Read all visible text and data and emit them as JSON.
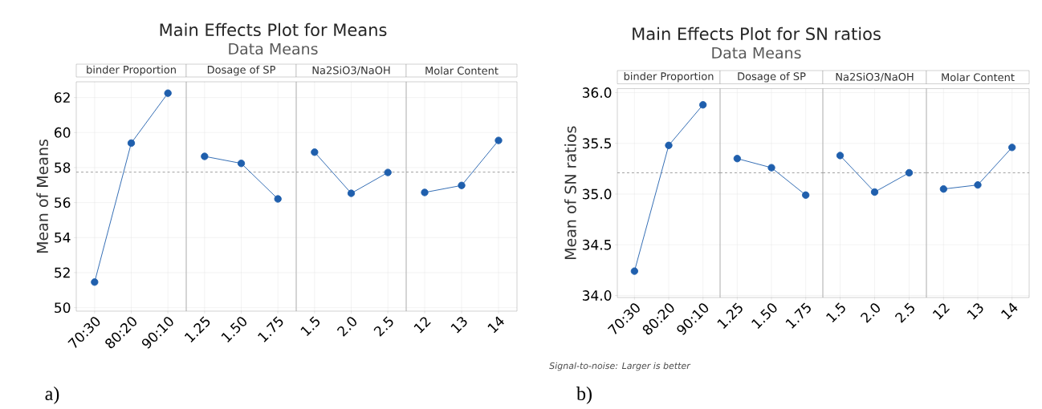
{
  "chart_data": [
    {
      "type": "line",
      "title": "binder Proportion",
      "ylabel": "Mean of Means",
      "annotations": [
        "Main Effects Plot for Means",
        "Data Means",
        "a)"
      ],
      "categories": [
        "70:30",
        "80:20",
        "90:10"
      ],
      "values": [
        51.46,
        59.4,
        62.25
      ],
      "color": "#1f5fad",
      "marker": "circle",
      "grid": true,
      "ylim": [
        49.8,
        62.9
      ],
      "yticks": [
        50,
        52,
        54,
        56,
        58,
        60,
        62
      ],
      "ref_lines": [
        {
          "axis": "y",
          "value": 57.74,
          "color": "#a0a0a0",
          "line_style": "dashed"
        }
      ]
    },
    {
      "type": "line",
      "title": "Dosage of SP",
      "categories": [
        "1.25",
        "1.50",
        "1.75"
      ],
      "values": [
        58.64,
        58.24,
        56.21
      ],
      "color": "#1f5fad",
      "marker": "circle",
      "grid": true,
      "ylim": [
        49.8,
        62.9
      ],
      "yticks": [
        50,
        52,
        54,
        56,
        58,
        60,
        62
      ],
      "tick_labels": "x",
      "ref_lines": [
        {
          "axis": "y",
          "value": 57.74,
          "color": "#a0a0a0",
          "line_style": "dashed"
        }
      ]
    },
    {
      "type": "line",
      "title": "Na2SiO3/NaOH",
      "categories": [
        "1.5",
        "2.0",
        "2.5"
      ],
      "values": [
        58.88,
        56.53,
        57.72
      ],
      "color": "#1f5fad",
      "marker": "circle",
      "grid": true,
      "ylim": [
        49.8,
        62.9
      ],
      "yticks": [
        50,
        52,
        54,
        56,
        58,
        60,
        62
      ],
      "tick_labels": "x",
      "ref_lines": [
        {
          "axis": "y",
          "value": 57.74,
          "color": "#a0a0a0",
          "line_style": "dashed"
        }
      ]
    },
    {
      "type": "line",
      "title": "Molar Content",
      "categories": [
        "12",
        "13",
        "14"
      ],
      "values": [
        56.58,
        56.98,
        59.55
      ],
      "color": "#1f5fad",
      "marker": "circle",
      "grid": true,
      "ylim": [
        49.8,
        62.9
      ],
      "yticks": [
        50,
        52,
        54,
        56,
        58,
        60,
        62
      ],
      "tick_labels": "x",
      "ref_lines": [
        {
          "axis": "y",
          "value": 57.74,
          "color": "#a0a0a0",
          "line_style": "dashed"
        }
      ]
    },
    {
      "type": "line",
      "title": "binder Proportion",
      "ylabel": "Mean of SN ratios",
      "annotations": [
        "Main Effects Plot for SN ratios",
        "Data Means",
        "Signal-to-noise: Larger is better",
        "b)"
      ],
      "categories": [
        "70:30",
        "80:20",
        "90:10"
      ],
      "values": [
        34.24,
        35.48,
        35.88
      ],
      "color": "#1f5fad",
      "marker": "circle",
      "grid": true,
      "ylim": [
        33.98,
        36.04
      ],
      "yticks": [
        {
          "value": 34,
          "label": "34.0"
        },
        {
          "value": 34.5,
          "label": "34.5"
        },
        {
          "value": 35,
          "label": "35.0"
        },
        {
          "value": 35.5,
          "label": "35.5"
        },
        {
          "value": 36,
          "label": "36.0"
        }
      ],
      "ref_lines": [
        {
          "axis": "y",
          "value": 35.21,
          "color": "#a0a0a0",
          "line_style": "dashed"
        }
      ]
    },
    {
      "type": "line",
      "title": "Dosage of SP",
      "categories": [
        "1.25",
        "1.50",
        "1.75"
      ],
      "values": [
        35.35,
        35.26,
        34.99
      ],
      "color": "#1f5fad",
      "marker": "circle",
      "grid": true,
      "ylim": [
        33.98,
        36.04
      ],
      "yticks": [
        34,
        34.5,
        35,
        35.5,
        36
      ],
      "tick_labels": "x",
      "ref_lines": [
        {
          "axis": "y",
          "value": 35.21,
          "color": "#a0a0a0",
          "line_style": "dashed"
        }
      ]
    },
    {
      "type": "line",
      "title": "Na2SiO3/NaOH",
      "categories": [
        "1.5",
        "2.0",
        "2.5"
      ],
      "values": [
        35.38,
        35.02,
        35.21
      ],
      "color": "#1f5fad",
      "marker": "circle",
      "grid": true,
      "ylim": [
        33.98,
        36.04
      ],
      "yticks": [
        34,
        34.5,
        35,
        35.5,
        36
      ],
      "tick_labels": "x",
      "ref_lines": [
        {
          "axis": "y",
          "value": 35.21,
          "color": "#a0a0a0",
          "line_style": "dashed"
        }
      ]
    },
    {
      "type": "line",
      "title": "Molar Content",
      "categories": [
        "12",
        "13",
        "14"
      ],
      "values": [
        35.05,
        35.09,
        35.46
      ],
      "color": "#1f5fad",
      "marker": "circle",
      "grid": true,
      "ylim": [
        33.98,
        36.04
      ],
      "yticks": [
        34,
        34.5,
        35,
        35.5,
        36
      ],
      "tick_labels": "x",
      "ref_lines": [
        {
          "axis": "y",
          "value": 35.21,
          "color": "#a0a0a0",
          "line_style": "dashed"
        }
      ]
    }
  ]
}
